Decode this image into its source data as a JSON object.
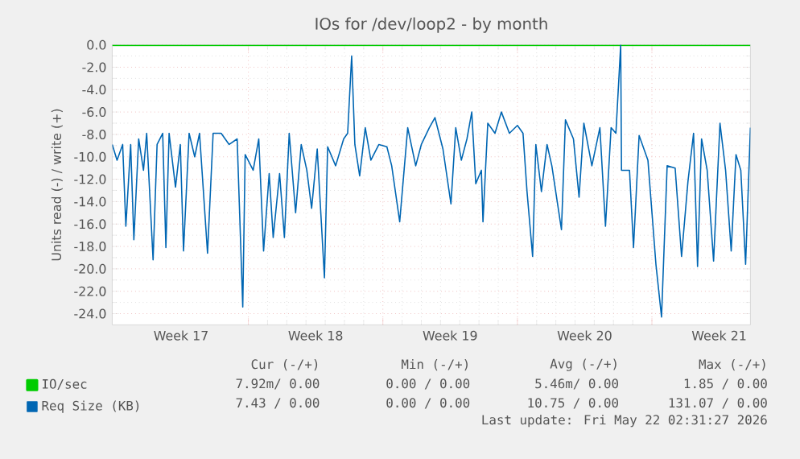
{
  "chart_data": {
    "type": "line",
    "title": "IOs for /dev/loop2 - by month",
    "ylabel": "Units read (-) / write (+)",
    "xlim": [
      "2026-04-18T22:00",
      "2026-05-22T03:00"
    ],
    "ylim": [
      -25,
      0
    ],
    "xticks": [
      {
        "value": "2026-04-22T12:00",
        "label": "Week 17"
      },
      {
        "value": "2026-04-26",
        "label": null
      },
      {
        "value": "2026-04-29T12:00",
        "label": "Week 18"
      },
      {
        "value": "2026-05-03",
        "label": null
      },
      {
        "value": "2026-05-06T12:00",
        "label": "Week 19"
      },
      {
        "value": "2026-05-10",
        "label": null
      },
      {
        "value": "2026-05-13T12:00",
        "label": "Week 20"
      },
      {
        "value": "2026-05-17",
        "label": null
      },
      {
        "value": "2026-05-20T12:00",
        "label": "Week 21"
      }
    ],
    "yticks": [
      {
        "value": 0,
        "label": "0.0"
      },
      {
        "value": -2,
        "label": "-2.0"
      },
      {
        "value": -4,
        "label": "-4.0"
      },
      {
        "value": -6,
        "label": "-6.0"
      },
      {
        "value": -8,
        "label": "-8.0"
      },
      {
        "value": -10,
        "label": "-10.0"
      },
      {
        "value": -12,
        "label": "-12.0"
      },
      {
        "value": -14,
        "label": "-14.0"
      },
      {
        "value": -16,
        "label": "-16.0"
      },
      {
        "value": -18,
        "label": "-18.0"
      },
      {
        "value": -20,
        "label": "-20.0"
      },
      {
        "value": -22,
        "label": "-22.0"
      },
      {
        "value": -24,
        "label": "-24.0"
      }
    ],
    "grid": true,
    "legend": "bottom",
    "series": [
      {
        "name": "IO/sec",
        "color": "#00cc00",
        "x": [
          "2026-04-18T22:00",
          "2026-05-22T03:00"
        ],
        "values": [
          0,
          0
        ]
      },
      {
        "name": "Req Size (KB)",
        "color": "#0066b3",
        "x": [
          "2026-04-18T22:00",
          "2026-04-19T04:00",
          "2026-04-19T11:00",
          "2026-04-19T15:00",
          "2026-04-19T21:00",
          "2026-04-20T01:00",
          "2026-04-20T07:00",
          "2026-04-20T13:00",
          "2026-04-20T17:00",
          "2026-04-21T01:00",
          "2026-04-21T06:00",
          "2026-04-21T13:00",
          "2026-04-21T17:00",
          "2026-04-21T21:00",
          "2026-04-22T05:00",
          "2026-04-22T11:00",
          "2026-04-22T15:00",
          "2026-04-22T22:00",
          "2026-04-23T05:00",
          "2026-04-23T11:00",
          "2026-04-23T21:00",
          "2026-04-24T04:00",
          "2026-04-24T14:00",
          "2026-04-25T00:00",
          "2026-04-25T10:00",
          "2026-04-25T17:00",
          "2026-04-25T20:00",
          "2026-04-26T06:00",
          "2026-04-26T13:00",
          "2026-04-26T19:00",
          "2026-04-27T02:00",
          "2026-04-27T07:00",
          "2026-04-27T15:00",
          "2026-04-27T21:00",
          "2026-04-28T03:00",
          "2026-04-28T11:00",
          "2026-04-28T18:00",
          "2026-04-29T01:00",
          "2026-04-29T07:00",
          "2026-04-29T14:00",
          "2026-04-29T23:00",
          "2026-04-30T03:00",
          "2026-04-30T13:00",
          "2026-04-30T23:00",
          "2026-05-01T04:00",
          "2026-05-01T09:00",
          "2026-05-01T13:00",
          "2026-05-01T19:00",
          "2026-05-02T02:00",
          "2026-05-02T09:00",
          "2026-05-02T19:00",
          "2026-05-03T05:00",
          "2026-05-03T11:00",
          "2026-05-03T21:00",
          "2026-05-04T07:00",
          "2026-05-04T17:00",
          "2026-05-05T00:00",
          "2026-05-05T10:00",
          "2026-05-05T17:00",
          "2026-05-06T03:00",
          "2026-05-06T13:00",
          "2026-05-06T19:00",
          "2026-05-07T02:00",
          "2026-05-07T09:00",
          "2026-05-07T15:00",
          "2026-05-07T20:00",
          "2026-05-08T03:00",
          "2026-05-08T05:00",
          "2026-05-08T11:00",
          "2026-05-08T20:00",
          "2026-05-09T04:00",
          "2026-05-09T14:00",
          "2026-05-10T00:00",
          "2026-05-10T07:00",
          "2026-05-10T12:00",
          "2026-05-10T19:00",
          "2026-05-10T23:00",
          "2026-05-11T06:00",
          "2026-05-11T13:00",
          "2026-05-11T19:00",
          "2026-05-12T07:00",
          "2026-05-12T12:00",
          "2026-05-12T22:00",
          "2026-05-13T05:00",
          "2026-05-13T11:00",
          "2026-05-13T21:00",
          "2026-05-14T07:00",
          "2026-05-14T14:00",
          "2026-05-14T21:00",
          "2026-05-15T03:00",
          "2026-05-15T09:00",
          "2026-05-15T10:00",
          "2026-05-15T20:00",
          "2026-05-16T01:00",
          "2026-05-16T08:00",
          "2026-05-16T19:00",
          "2026-05-17T05:00",
          "2026-05-17T12:00",
          "2026-05-17T19:00",
          "2026-05-18T05:00",
          "2026-05-18T13:00",
          "2026-05-18T21:00",
          "2026-05-19T04:00",
          "2026-05-19T09:00",
          "2026-05-19T14:00",
          "2026-05-19T21:00",
          "2026-05-20T05:00",
          "2026-05-20T13:00",
          "2026-05-20T20:00",
          "2026-05-21T03:00",
          "2026-05-21T09:00",
          "2026-05-21T15:00",
          "2026-05-21T21:00",
          "2026-05-22T03:00"
        ],
        "values": [
          -8.9,
          -10.3,
          -8.9,
          -16.2,
          -8.9,
          -17.4,
          -8.4,
          -11.2,
          -7.9,
          -19.2,
          -8.9,
          -7.9,
          -18.1,
          -7.9,
          -12.7,
          -8.9,
          -18.4,
          -7.9,
          -10.0,
          -7.9,
          -18.6,
          -7.9,
          -7.9,
          -8.9,
          -8.4,
          -23.4,
          -9.8,
          -11.2,
          -8.4,
          -18.4,
          -11.5,
          -17.2,
          -11.5,
          -17.2,
          -7.9,
          -15.0,
          -8.9,
          -11.2,
          -14.6,
          -9.3,
          -20.8,
          -9.1,
          -10.8,
          -8.4,
          -7.9,
          -1.0,
          -8.9,
          -11.7,
          -7.4,
          -10.3,
          -8.9,
          -9.1,
          -10.8,
          -15.8,
          -7.4,
          -10.8,
          -8.9,
          -7.4,
          -6.5,
          -9.3,
          -14.2,
          -7.4,
          -10.3,
          -8.4,
          -6.0,
          -12.4,
          -11.2,
          -15.8,
          -7.0,
          -7.9,
          -6.0,
          -7.9,
          -7.2,
          -7.9,
          -13.1,
          -18.9,
          -8.9,
          -13.1,
          -8.9,
          -10.8,
          -16.5,
          -6.7,
          -8.4,
          -13.6,
          -7.0,
          -10.8,
          -7.4,
          -16.2,
          -7.4,
          -7.9,
          0.0,
          -11.2,
          -11.2,
          -18.1,
          -8.1,
          -10.3,
          -19.6,
          -24.3,
          -10.8,
          -11.0,
          -18.9,
          -12.2,
          -7.9,
          -19.8,
          -8.4,
          -11.2,
          -19.3,
          -7.0,
          -11.2,
          -18.4,
          -9.8,
          -11.2,
          -19.6,
          -7.4
        ]
      }
    ],
    "annotations": [
      "Cur (-/+)",
      "Min (-/+)",
      "Avg (-/+)",
      "Max (-/+)",
      "7.92m/ 0.00",
      "0.00 / 0.00",
      "5.46m/ 0.00",
      "1.85 / 0.00",
      "7.43 / 0.00",
      "0.00 / 0.00",
      "10.75 / 0.00",
      "131.07 / 0.00",
      "Last update: Fri May 22 02:31:27 2026"
    ]
  }
}
